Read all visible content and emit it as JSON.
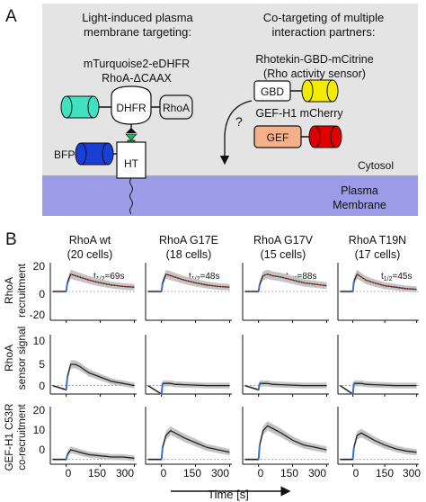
{
  "panelA": {
    "letter": "A",
    "heading_left": [
      "Light-induced plasma",
      "membrane targeting:"
    ],
    "heading_right": [
      "Co-targeting of multiple",
      "interaction partners:"
    ],
    "construct_left": [
      "mTurquoise2-eDHFR",
      "RhoA-ΔCAAX"
    ],
    "construct_right": [
      "Rhotekin-GBD-mCitrine",
      "(Rho activity sensor)"
    ],
    "gef_title": "GEF-H1 mCherry",
    "dhfr": "DHFR",
    "rhoa": "RhoA",
    "gbd": "GBD",
    "gef": "GEF",
    "ht": "HT",
    "bfp": "BFP",
    "question": "?",
    "cytosol": "Cytosol",
    "membrane": [
      "Plasma",
      "Membrane"
    ],
    "colors": {
      "teal": "#40e0c0",
      "yellow": "#f2ec00",
      "red": "#e00000",
      "salmon": "#f5b08a",
      "blue": "#1a3fd6",
      "green": "#1ab85a",
      "membrane": "#9c9ce6",
      "background": "#e4e4e4"
    }
  },
  "panelB": {
    "letter": "B",
    "columns": [
      {
        "title": "RhoA wt",
        "cells": "(20 cells)",
        "t_half": "69s"
      },
      {
        "title": "RhoA G17E",
        "cells": "(18 cells)",
        "t_half": "48s"
      },
      {
        "title": "RhoA G17V",
        "cells": "(15 cells)",
        "t_half": "88s"
      },
      {
        "title": "RhoA T19N",
        "cells": "(17 cells)",
        "t_half": "45s"
      }
    ],
    "t_half_prefix": "t",
    "t_half_sub": "1/2",
    "rows": [
      {
        "label": [
          "RhoA",
          "recruitment"
        ],
        "yticks": [
          "20",
          "0",
          "-20"
        ]
      },
      {
        "label": [
          "RhoA",
          "sensor signal"
        ],
        "yticks": [
          "10",
          "5",
          "0"
        ]
      },
      {
        "label": [
          "GEF-H1 C53R",
          "co-recruitment"
        ],
        "yticks": [
          "20",
          "10",
          "0"
        ]
      }
    ],
    "xticks": [
      "0",
      "150",
      "300"
    ],
    "xlabel": "Time [s]"
  },
  "chart_data": [
    {
      "type": "line",
      "title": "RhoA wt (20 cells)",
      "ylabel": "RhoA recruitment",
      "ylim": [
        -20,
        20
      ],
      "x": [
        -60,
        0,
        5,
        20,
        40,
        60,
        100,
        150,
        200,
        250,
        300
      ],
      "series": [
        {
          "values": [
            0,
            0,
            6,
            12,
            11,
            10,
            8,
            6,
            4.5,
            3.5,
            3
          ]
        }
      ]
    },
    {
      "type": "line",
      "title": "RhoA G17E (18 cells)",
      "ylabel": "RhoA recruitment",
      "ylim": [
        -20,
        20
      ],
      "x": [
        -60,
        0,
        5,
        20,
        40,
        60,
        100,
        150,
        200,
        250,
        300
      ],
      "series": [
        {
          "values": [
            0,
            0,
            6,
            12,
            11,
            10,
            8,
            6,
            4.5,
            3.5,
            3
          ]
        }
      ]
    },
    {
      "type": "line",
      "title": "RhoA G17V (15 cells)",
      "ylabel": "RhoA recruitment",
      "ylim": [
        -20,
        20
      ],
      "x": [
        -60,
        0,
        5,
        20,
        40,
        60,
        100,
        150,
        200,
        250,
        300
      ],
      "series": [
        {
          "values": [
            0,
            0,
            5,
            11,
            12,
            11,
            10,
            8,
            6,
            5,
            4
          ]
        }
      ]
    },
    {
      "type": "line",
      "title": "RhoA T19N (17 cells)",
      "ylabel": "RhoA recruitment",
      "ylim": [
        -20,
        20
      ],
      "x": [
        -60,
        0,
        5,
        20,
        40,
        60,
        100,
        150,
        200,
        250,
        300
      ],
      "series": [
        {
          "values": [
            0,
            0,
            7,
            12,
            10,
            8,
            6,
            4,
            3,
            2,
            1.5
          ]
        }
      ]
    },
    {
      "type": "line",
      "ylabel": "RhoA sensor signal",
      "ylim": [
        -2,
        12
      ],
      "x": [
        -60,
        0,
        5,
        20,
        40,
        60,
        100,
        150,
        200,
        250,
        300
      ],
      "series": [
        {
          "values": [
            0,
            -1,
            2,
            5,
            5,
            4.5,
            3,
            2,
            1,
            0.5,
            0
          ]
        }
      ]
    },
    {
      "type": "line",
      "ylabel": "RhoA sensor signal",
      "ylim": [
        -2,
        12
      ],
      "x": [
        -60,
        0,
        5,
        20,
        40,
        60,
        100,
        150,
        200,
        250,
        300
      ],
      "series": [
        {
          "values": [
            0,
            -2,
            0.5,
            0.5,
            0.5,
            0.3,
            0.2,
            0.1,
            0,
            0,
            0
          ]
        }
      ]
    },
    {
      "type": "line",
      "ylabel": "RhoA sensor signal",
      "ylim": [
        -2,
        12
      ],
      "x": [
        -60,
        0,
        5,
        20,
        40,
        60,
        100,
        150,
        200,
        250,
        300
      ],
      "series": [
        {
          "values": [
            0,
            -1,
            0.5,
            0.5,
            0.5,
            0.3,
            0.2,
            0.1,
            0,
            0,
            0
          ]
        }
      ]
    },
    {
      "type": "line",
      "ylabel": "RhoA sensor signal",
      "ylim": [
        -2,
        12
      ],
      "x": [
        -60,
        0,
        5,
        20,
        40,
        60,
        100,
        150,
        200,
        250,
        300
      ],
      "series": [
        {
          "values": [
            0,
            -2,
            0.5,
            0.5,
            0.5,
            0.3,
            0.2,
            0.1,
            0,
            0,
            0
          ]
        }
      ]
    },
    {
      "type": "line",
      "ylabel": "GEF-H1 C53R co-recruitment",
      "ylim": [
        -2,
        22
      ],
      "x": [
        -60,
        0,
        5,
        20,
        40,
        60,
        100,
        150,
        200,
        250,
        300
      ],
      "series": [
        {
          "values": [
            0,
            0,
            2,
            4,
            3.5,
            3,
            2,
            1.5,
            1,
            1,
            0.5
          ]
        }
      ]
    },
    {
      "type": "line",
      "ylabel": "GEF-H1 C53R co-recruitment",
      "ylim": [
        -2,
        22
      ],
      "x": [
        -60,
        0,
        5,
        20,
        40,
        60,
        100,
        150,
        200,
        250,
        300
      ],
      "series": [
        {
          "values": [
            0,
            0,
            5,
            10,
            12,
            11,
            9,
            7,
            5,
            4,
            3
          ]
        }
      ]
    },
    {
      "type": "line",
      "ylabel": "GEF-H1 C53R co-recruitment",
      "ylim": [
        -2,
        22
      ],
      "x": [
        -60,
        0,
        5,
        20,
        40,
        60,
        100,
        150,
        200,
        250,
        300
      ],
      "series": [
        {
          "values": [
            0,
            0,
            6,
            12,
            14,
            13,
            11,
            8,
            6,
            5,
            4
          ]
        }
      ]
    },
    {
      "type": "line",
      "ylabel": "GEF-H1 C53R co-recruitment",
      "ylim": [
        -2,
        22
      ],
      "x": [
        -60,
        0,
        5,
        20,
        40,
        60,
        100,
        150,
        200,
        250,
        300
      ],
      "series": [
        {
          "values": [
            0,
            0,
            5,
            10,
            11,
            10,
            8,
            6,
            4.5,
            3.5,
            3
          ]
        }
      ]
    }
  ]
}
